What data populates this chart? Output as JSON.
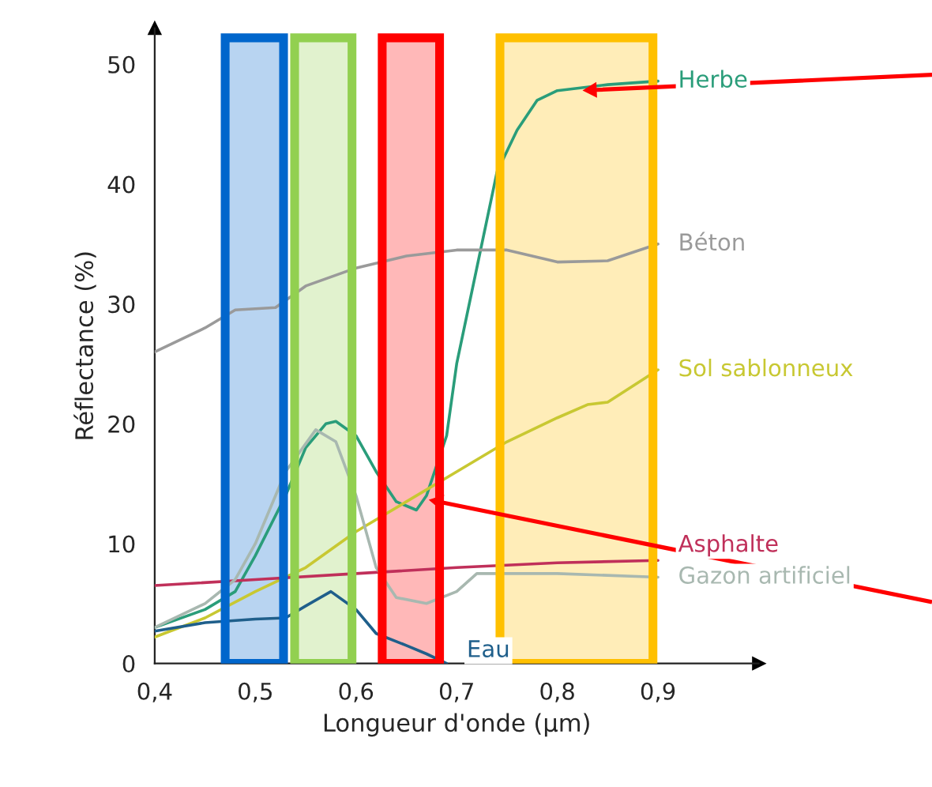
{
  "chart_data": {
    "type": "line",
    "xlabel": "Longueur d'onde (µm)",
    "ylabel": "Réflectance (%)",
    "xlim": [
      0.4,
      1.0
    ],
    "ylim": [
      0,
      53
    ],
    "xticks": [
      {
        "value": 0.4,
        "label": "0,4"
      },
      {
        "value": 0.5,
        "label": "0,5"
      },
      {
        "value": 0.6,
        "label": "0,6"
      },
      {
        "value": 0.7,
        "label": "0,7"
      },
      {
        "value": 0.8,
        "label": "0,8"
      },
      {
        "value": 0.9,
        "label": "0,9"
      }
    ],
    "yticks": [
      0,
      10,
      20,
      30,
      40,
      50
    ],
    "grid": false,
    "legend": false,
    "marker": "none",
    "line_style": "solid",
    "series": [
      {
        "name": "Herbe",
        "color": "#2a9d7a",
        "x": [
          0.4,
          0.45,
          0.48,
          0.5,
          0.53,
          0.55,
          0.57,
          0.58,
          0.6,
          0.62,
          0.64,
          0.66,
          0.67,
          0.69,
          0.7,
          0.72,
          0.74,
          0.76,
          0.78,
          0.8,
          0.85,
          0.9
        ],
        "values": [
          3.0,
          4.5,
          6,
          9,
          14,
          18,
          20,
          20.2,
          19,
          16,
          13.5,
          12.8,
          14,
          19,
          25,
          33,
          41,
          44.5,
          47,
          47.8,
          48.3,
          48.6
        ]
      },
      {
        "name": "Béton",
        "color": "#9a9a9a",
        "x": [
          0.4,
          0.45,
          0.48,
          0.52,
          0.55,
          0.6,
          0.65,
          0.7,
          0.75,
          0.8,
          0.85,
          0.9
        ],
        "values": [
          26,
          28,
          29.5,
          29.7,
          31.5,
          33,
          34,
          34.5,
          34.5,
          33.5,
          33.6,
          35
        ]
      },
      {
        "name": "Sol sablonneux",
        "color": "#c8c832",
        "x": [
          0.4,
          0.45,
          0.5,
          0.55,
          0.6,
          0.65,
          0.7,
          0.75,
          0.8,
          0.83,
          0.85,
          0.9
        ],
        "values": [
          2.2,
          3.8,
          6,
          8,
          11,
          13.5,
          16,
          18.5,
          20.5,
          21.6,
          21.8,
          24.5
        ]
      },
      {
        "name": "Asphalte",
        "color": "#c0305a",
        "x": [
          0.4,
          0.5,
          0.6,
          0.7,
          0.8,
          0.9
        ],
        "values": [
          6.5,
          7,
          7.5,
          8,
          8.4,
          8.6
        ]
      },
      {
        "name": "Gazon artificiel",
        "color": "#a8b8b0",
        "x": [
          0.4,
          0.45,
          0.48,
          0.5,
          0.53,
          0.56,
          0.58,
          0.6,
          0.62,
          0.64,
          0.67,
          0.7,
          0.72,
          0.8,
          0.9
        ],
        "values": [
          3,
          5,
          7,
          10,
          16,
          19.5,
          18.5,
          14,
          8,
          5.5,
          5,
          6,
          7.5,
          7.5,
          7.2
        ]
      },
      {
        "name": "Eau",
        "color": "#1f5f8b",
        "x": [
          0.4,
          0.45,
          0.5,
          0.53,
          0.55,
          0.575,
          0.6,
          0.62,
          0.65,
          0.67,
          0.69
        ],
        "values": [
          2.7,
          3.4,
          3.7,
          3.8,
          4.8,
          6,
          4.5,
          2.5,
          1.5,
          0.8,
          0
        ]
      }
    ],
    "bands": [
      {
        "axis": "x",
        "from": 0.47,
        "to": 0.528,
        "color": "#0066cc"
      },
      {
        "axis": "x",
        "from": 0.539,
        "to": 0.596,
        "color": "#92d050"
      },
      {
        "axis": "x",
        "from": 0.626,
        "to": 0.683,
        "color": "#ff0000"
      },
      {
        "axis": "x",
        "from": 0.743,
        "to": 0.895,
        "color": "#ffc000"
      }
    ]
  }
}
